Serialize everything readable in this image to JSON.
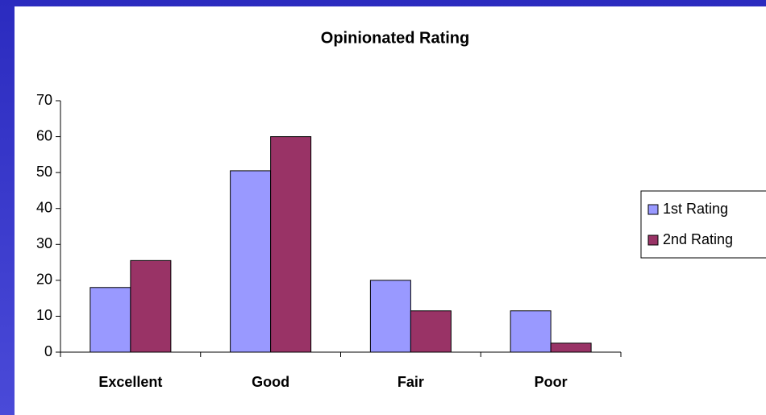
{
  "chart_data": {
    "type": "bar",
    "title": "Opinionated Rating",
    "categories": [
      "Excellent",
      "Good",
      "Fair",
      "Poor"
    ],
    "series": [
      {
        "name": "1st Rating",
        "color": "#9999ff",
        "values": [
          18,
          50.5,
          20,
          11.5
        ]
      },
      {
        "name": "2nd Rating",
        "color": "#993366",
        "values": [
          25.5,
          60,
          11.5,
          2.5
        ]
      }
    ],
    "ylim": [
      0,
      70
    ],
    "yticks": [
      0,
      10,
      20,
      30,
      40,
      50,
      60,
      70
    ],
    "grid": false,
    "legend": "right"
  }
}
